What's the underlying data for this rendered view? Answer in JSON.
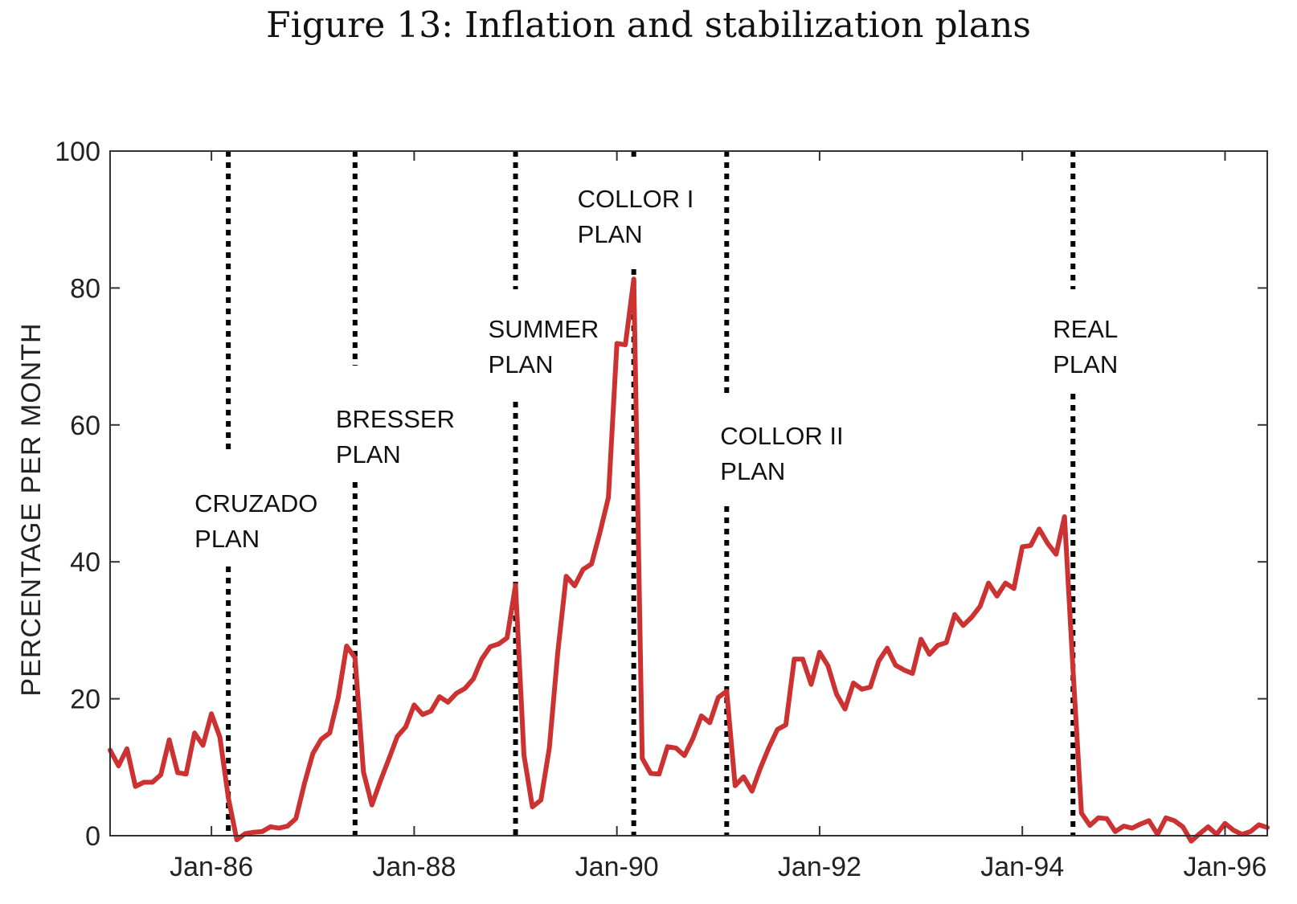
{
  "title": "Figure 13: Inflation and stabilization plans",
  "colors": {
    "series": "#cd3232",
    "plan_line": "#000000",
    "axis": "#333333"
  },
  "chart_data": {
    "type": "line",
    "title": "Figure 13: Inflation and stabilization plans",
    "ylabel": "PERCENTAGE PER MONTH",
    "xlabel": "",
    "ylim": [
      0,
      100
    ],
    "y_ticks": [
      0,
      20,
      40,
      60,
      80,
      100
    ],
    "xlim": [
      "1985-01",
      "1996-06"
    ],
    "x_ticks": [
      {
        "date": "1986-01",
        "label": "Jan-86"
      },
      {
        "date": "1988-01",
        "label": "Jan-88"
      },
      {
        "date": "1990-01",
        "label": "Jan-90"
      },
      {
        "date": "1992-01",
        "label": "Jan-92"
      },
      {
        "date": "1994-01",
        "label": "Jan-94"
      },
      {
        "date": "1996-01",
        "label": "Jan-96"
      }
    ],
    "grid": false,
    "plans": [
      {
        "name": "CRUZADO PLAN",
        "lines": [
          "CRUZADO",
          "PLAN"
        ],
        "date": "1986-03"
      },
      {
        "name": "BRESSER PLAN",
        "lines": [
          "BRESSER",
          "PLAN"
        ],
        "date": "1987-06"
      },
      {
        "name": "SUMMER PLAN",
        "lines": [
          "SUMMER",
          "PLAN"
        ],
        "date": "1989-01"
      },
      {
        "name": "COLLOR I PLAN",
        "lines": [
          "COLLOR I",
          "PLAN"
        ],
        "date": "1990-03"
      },
      {
        "name": "COLLOR II PLAN",
        "lines": [
          "COLLOR II",
          "PLAN"
        ],
        "date": "1991-02"
      },
      {
        "name": "REAL PLAN",
        "lines": [
          "REAL",
          "PLAN"
        ],
        "date": "1994-07"
      }
    ],
    "series": [
      {
        "dates": [
          "1985-01",
          "1985-02",
          "1985-03",
          "1985-04",
          "1985-05",
          "1985-06",
          "1985-07",
          "1985-08",
          "1985-09",
          "1985-10",
          "1985-11",
          "1985-12",
          "1986-01",
          "1986-02",
          "1986-03",
          "1986-04",
          "1986-05",
          "1986-06",
          "1986-07",
          "1986-08",
          "1986-09",
          "1986-10",
          "1986-11",
          "1986-12",
          "1987-01",
          "1987-02",
          "1987-03",
          "1987-04",
          "1987-05",
          "1987-06",
          "1987-07",
          "1987-08",
          "1987-09",
          "1987-10",
          "1987-11",
          "1987-12",
          "1988-01",
          "1988-02",
          "1988-03",
          "1988-04",
          "1988-05",
          "1988-06",
          "1988-07",
          "1988-08",
          "1988-09",
          "1988-10",
          "1988-11",
          "1988-12",
          "1989-01",
          "1989-02",
          "1989-03",
          "1989-04",
          "1989-05",
          "1989-06",
          "1989-07",
          "1989-08",
          "1989-09",
          "1989-10",
          "1989-11",
          "1989-12",
          "1990-01",
          "1990-02",
          "1990-03",
          "1990-04",
          "1990-05",
          "1990-06",
          "1990-07",
          "1990-08",
          "1990-09",
          "1990-10",
          "1990-11",
          "1990-12",
          "1991-01",
          "1991-02",
          "1991-03",
          "1991-04",
          "1991-05",
          "1991-06",
          "1991-07",
          "1991-08",
          "1991-09",
          "1991-10",
          "1991-11",
          "1991-12",
          "1992-01",
          "1992-02",
          "1992-03",
          "1992-04",
          "1992-05",
          "1992-06",
          "1992-07",
          "1992-08",
          "1992-09",
          "1992-10",
          "1992-11",
          "1992-12",
          "1993-01",
          "1993-02",
          "1993-03",
          "1993-04",
          "1993-05",
          "1993-06",
          "1993-07",
          "1993-08",
          "1993-09",
          "1993-10",
          "1993-11",
          "1993-12",
          "1994-01",
          "1994-02",
          "1994-03",
          "1994-04",
          "1994-05",
          "1994-06",
          "1994-07",
          "1994-08",
          "1994-09",
          "1994-10",
          "1994-11",
          "1994-12",
          "1995-01",
          "1995-02",
          "1995-03",
          "1995-04",
          "1995-05",
          "1995-06",
          "1995-07",
          "1995-08",
          "1995-09",
          "1995-10",
          "1995-11",
          "1995-12",
          "1996-01",
          "1996-02",
          "1996-03",
          "1996-04",
          "1996-05",
          "1996-06"
        ],
        "values": [
          12.5,
          10.2,
          12.7,
          7.2,
          7.8,
          7.8,
          8.9,
          14.0,
          9.2,
          9.0,
          15.0,
          13.2,
          17.8,
          14.4,
          5.5,
          -0.6,
          0.3,
          0.5,
          0.6,
          1.3,
          1.1,
          1.4,
          2.5,
          7.6,
          12.0,
          14.1,
          15.0,
          20.1,
          27.7,
          26.0,
          9.3,
          4.5,
          8.0,
          11.2,
          14.5,
          15.9,
          19.1,
          17.7,
          18.2,
          20.3,
          19.5,
          20.8,
          21.5,
          22.9,
          25.8,
          27.6,
          28.0,
          28.9,
          36.6,
          11.8,
          4.2,
          5.2,
          12.8,
          26.8,
          37.9,
          36.5,
          38.9,
          39.7,
          44.3,
          49.4,
          71.9,
          71.7,
          81.3,
          11.3,
          9.1,
          9.0,
          13.0,
          12.8,
          11.7,
          14.2,
          17.5,
          16.5,
          20.2,
          21.1,
          7.3,
          8.6,
          6.5,
          9.9,
          12.9,
          15.5,
          16.2,
          25.8,
          25.8,
          22.1,
          26.8,
          24.8,
          20.7,
          18.5,
          22.3,
          21.4,
          21.7,
          25.5,
          27.4,
          24.9,
          24.2,
          23.7,
          28.7,
          26.5,
          27.8,
          28.2,
          32.3,
          30.7,
          31.9,
          33.5,
          36.9,
          35.0,
          36.9,
          36.1,
          42.2,
          42.4,
          44.8,
          42.7,
          41.1,
          46.6,
          24.4,
          3.3,
          1.5,
          2.6,
          2.5,
          0.6,
          1.4,
          1.1,
          1.7,
          2.2,
          0.2,
          2.6,
          2.2,
          1.3,
          -0.8,
          0.3,
          1.3,
          0.2,
          1.8,
          0.8,
          0.2,
          0.6,
          1.6,
          1.2
        ]
      }
    ]
  }
}
